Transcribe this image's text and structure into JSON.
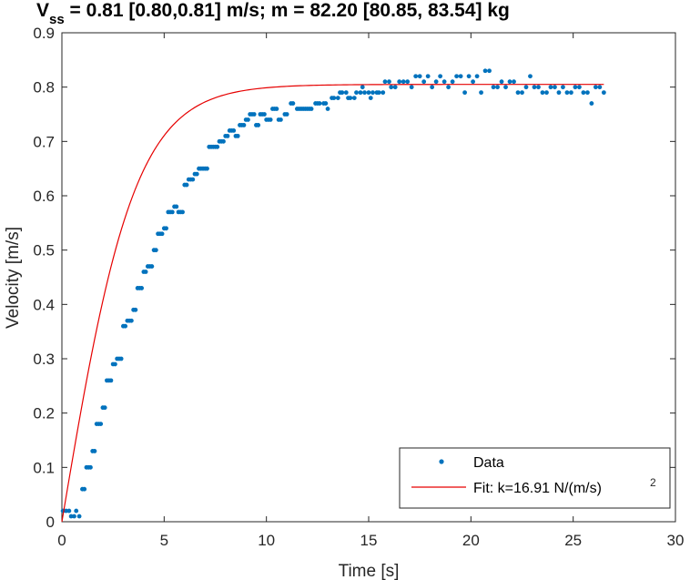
{
  "chart_data": {
    "type": "scatter",
    "title": {
      "v_main": "V",
      "v_sub": "ss",
      "rest": " = 0.81 [0.80,0.81] m/s; m = 82.20 [80.85, 83.54] kg"
    },
    "xlabel": "Time [s]",
    "ylabel": "Velocity [m/s]",
    "xlim": [
      0,
      30
    ],
    "ylim": [
      0,
      0.9
    ],
    "xticks": [
      0,
      5,
      10,
      15,
      20,
      25,
      30
    ],
    "yticks": [
      0,
      0.1,
      0.2,
      0.3,
      0.4,
      0.5,
      0.6,
      0.7,
      0.8,
      0.9
    ],
    "xtick_labels": [
      "0",
      "5",
      "10",
      "15",
      "20",
      "25",
      "30"
    ],
    "ytick_labels": [
      "0",
      "0.1",
      "0.2",
      "0.3",
      "0.4",
      "0.5",
      "0.6",
      "0.7",
      "0.8",
      "0.9"
    ],
    "grid": false,
    "legend_position": "bottom-right",
    "series": [
      {
        "name": "Data",
        "style": "points",
        "color": "#0072BD",
        "points": [
          [
            0.05,
            0.02
          ],
          [
            0.2,
            0.02
          ],
          [
            0.35,
            0.02
          ],
          [
            0.45,
            0.01
          ],
          [
            0.6,
            0.01
          ],
          [
            0.7,
            0.02
          ],
          [
            0.85,
            0.01
          ],
          [
            1.0,
            0.06
          ],
          [
            1.1,
            0.06
          ],
          [
            1.2,
            0.1
          ],
          [
            1.3,
            0.1
          ],
          [
            1.4,
            0.1
          ],
          [
            1.5,
            0.13
          ],
          [
            1.6,
            0.13
          ],
          [
            1.7,
            0.18
          ],
          [
            1.8,
            0.18
          ],
          [
            1.9,
            0.18
          ],
          [
            2.0,
            0.21
          ],
          [
            2.1,
            0.21
          ],
          [
            2.2,
            0.26
          ],
          [
            2.3,
            0.26
          ],
          [
            2.4,
            0.26
          ],
          [
            2.5,
            0.29
          ],
          [
            2.6,
            0.29
          ],
          [
            2.7,
            0.3
          ],
          [
            2.8,
            0.3
          ],
          [
            2.9,
            0.3
          ],
          [
            3.0,
            0.36
          ],
          [
            3.1,
            0.36
          ],
          [
            3.2,
            0.37
          ],
          [
            3.3,
            0.37
          ],
          [
            3.4,
            0.37
          ],
          [
            3.5,
            0.39
          ],
          [
            3.6,
            0.39
          ],
          [
            3.7,
            0.43
          ],
          [
            3.8,
            0.43
          ],
          [
            3.9,
            0.43
          ],
          [
            4.0,
            0.46
          ],
          [
            4.1,
            0.46
          ],
          [
            4.2,
            0.47
          ],
          [
            4.3,
            0.47
          ],
          [
            4.4,
            0.47
          ],
          [
            4.5,
            0.5
          ],
          [
            4.6,
            0.5
          ],
          [
            4.7,
            0.53
          ],
          [
            4.8,
            0.53
          ],
          [
            4.9,
            0.53
          ],
          [
            5.0,
            0.54
          ],
          [
            5.1,
            0.54
          ],
          [
            5.2,
            0.57
          ],
          [
            5.3,
            0.57
          ],
          [
            5.4,
            0.57
          ],
          [
            5.5,
            0.58
          ],
          [
            5.6,
            0.58
          ],
          [
            5.7,
            0.57
          ],
          [
            5.8,
            0.57
          ],
          [
            5.9,
            0.57
          ],
          [
            6.0,
            0.62
          ],
          [
            6.1,
            0.62
          ],
          [
            6.2,
            0.63
          ],
          [
            6.3,
            0.63
          ],
          [
            6.4,
            0.63
          ],
          [
            6.5,
            0.64
          ],
          [
            6.6,
            0.64
          ],
          [
            6.7,
            0.65
          ],
          [
            6.8,
            0.65
          ],
          [
            6.9,
            0.65
          ],
          [
            7.0,
            0.65
          ],
          [
            7.1,
            0.65
          ],
          [
            7.2,
            0.69
          ],
          [
            7.3,
            0.69
          ],
          [
            7.4,
            0.69
          ],
          [
            7.5,
            0.69
          ],
          [
            7.6,
            0.69
          ],
          [
            7.7,
            0.7
          ],
          [
            7.8,
            0.7
          ],
          [
            7.9,
            0.7
          ],
          [
            8.0,
            0.71
          ],
          [
            8.1,
            0.71
          ],
          [
            8.2,
            0.72
          ],
          [
            8.3,
            0.72
          ],
          [
            8.4,
            0.72
          ],
          [
            8.5,
            0.71
          ],
          [
            8.6,
            0.71
          ],
          [
            8.7,
            0.73
          ],
          [
            8.8,
            0.73
          ],
          [
            8.9,
            0.73
          ],
          [
            9.0,
            0.74
          ],
          [
            9.1,
            0.74
          ],
          [
            9.2,
            0.75
          ],
          [
            9.3,
            0.75
          ],
          [
            9.4,
            0.75
          ],
          [
            9.5,
            0.73
          ],
          [
            9.6,
            0.73
          ],
          [
            9.7,
            0.75
          ],
          [
            9.8,
            0.75
          ],
          [
            9.9,
            0.75
          ],
          [
            10.0,
            0.74
          ],
          [
            10.1,
            0.74
          ],
          [
            10.2,
            0.74
          ],
          [
            10.3,
            0.76
          ],
          [
            10.4,
            0.76
          ],
          [
            10.5,
            0.76
          ],
          [
            10.6,
            0.74
          ],
          [
            10.7,
            0.74
          ],
          [
            10.9,
            0.75
          ],
          [
            11.0,
            0.75
          ],
          [
            11.2,
            0.77
          ],
          [
            11.3,
            0.77
          ],
          [
            11.5,
            0.76
          ],
          [
            11.6,
            0.76
          ],
          [
            11.7,
            0.76
          ],
          [
            11.8,
            0.76
          ],
          [
            11.9,
            0.76
          ],
          [
            12.0,
            0.76
          ],
          [
            12.1,
            0.76
          ],
          [
            12.2,
            0.76
          ],
          [
            12.4,
            0.77
          ],
          [
            12.5,
            0.77
          ],
          [
            12.6,
            0.77
          ],
          [
            12.8,
            0.77
          ],
          [
            12.9,
            0.77
          ],
          [
            13.0,
            0.76
          ],
          [
            13.2,
            0.78
          ],
          [
            13.3,
            0.78
          ],
          [
            13.5,
            0.78
          ],
          [
            13.6,
            0.79
          ],
          [
            13.7,
            0.79
          ],
          [
            13.9,
            0.79
          ],
          [
            14.0,
            0.78
          ],
          [
            14.1,
            0.78
          ],
          [
            14.3,
            0.78
          ],
          [
            14.4,
            0.79
          ],
          [
            14.6,
            0.79
          ],
          [
            14.7,
            0.8
          ],
          [
            14.8,
            0.79
          ],
          [
            15.0,
            0.79
          ],
          [
            15.1,
            0.78
          ],
          [
            15.2,
            0.79
          ],
          [
            15.4,
            0.79
          ],
          [
            15.5,
            0.79
          ],
          [
            15.7,
            0.79
          ],
          [
            15.8,
            0.81
          ],
          [
            16.0,
            0.81
          ],
          [
            16.1,
            0.8
          ],
          [
            16.3,
            0.8
          ],
          [
            16.5,
            0.81
          ],
          [
            16.7,
            0.81
          ],
          [
            16.9,
            0.81
          ],
          [
            17.1,
            0.8
          ],
          [
            17.3,
            0.82
          ],
          [
            17.5,
            0.82
          ],
          [
            17.7,
            0.81
          ],
          [
            17.9,
            0.82
          ],
          [
            18.1,
            0.8
          ],
          [
            18.3,
            0.81
          ],
          [
            18.5,
            0.82
          ],
          [
            18.7,
            0.81
          ],
          [
            18.9,
            0.8
          ],
          [
            19.1,
            0.81
          ],
          [
            19.3,
            0.82
          ],
          [
            19.5,
            0.82
          ],
          [
            19.7,
            0.79
          ],
          [
            19.9,
            0.82
          ],
          [
            20.1,
            0.81
          ],
          [
            20.3,
            0.82
          ],
          [
            20.5,
            0.79
          ],
          [
            20.7,
            0.83
          ],
          [
            20.9,
            0.83
          ],
          [
            21.1,
            0.8
          ],
          [
            21.3,
            0.8
          ],
          [
            21.5,
            0.81
          ],
          [
            21.7,
            0.8
          ],
          [
            21.9,
            0.81
          ],
          [
            22.1,
            0.81
          ],
          [
            22.3,
            0.79
          ],
          [
            22.5,
            0.79
          ],
          [
            22.7,
            0.8
          ],
          [
            22.9,
            0.82
          ],
          [
            23.1,
            0.8
          ],
          [
            23.3,
            0.8
          ],
          [
            23.5,
            0.79
          ],
          [
            23.7,
            0.79
          ],
          [
            23.9,
            0.8
          ],
          [
            24.1,
            0.8
          ],
          [
            24.3,
            0.79
          ],
          [
            24.5,
            0.8
          ],
          [
            24.7,
            0.79
          ],
          [
            24.9,
            0.79
          ],
          [
            25.1,
            0.8
          ],
          [
            25.3,
            0.8
          ],
          [
            25.5,
            0.79
          ],
          [
            25.7,
            0.79
          ],
          [
            25.9,
            0.77
          ],
          [
            26.1,
            0.8
          ],
          [
            26.3,
            0.8
          ],
          [
            26.5,
            0.79
          ]
        ]
      },
      {
        "name": "Fit: k=16.91 N/(m/s)",
        "name_superscript": "2",
        "style": "line",
        "color": "#E60000",
        "x_range": [
          0,
          26.5
        ],
        "model": {
          "form": "v = v_ss * tanh(t / tau)",
          "v_ss": 0.805,
          "tau": 3.6
        }
      }
    ]
  }
}
